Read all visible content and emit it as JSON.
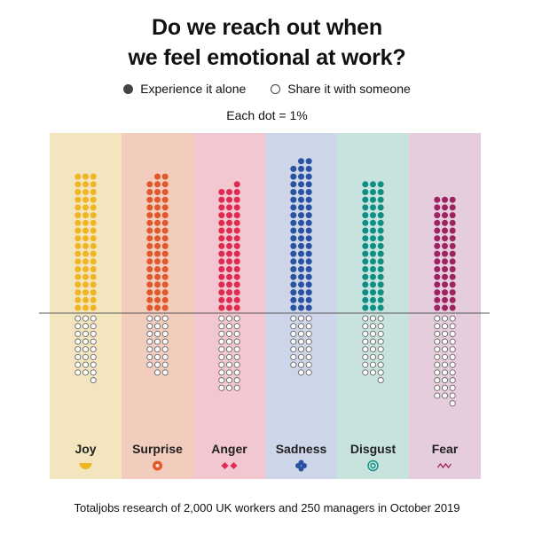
{
  "title_line1": "Do we reach out when",
  "title_line2": "we feel emotional at work?",
  "legend": {
    "alone": "Experience it alone",
    "share": "Share it with someone"
  },
  "unit_note": "Each dot = 1%",
  "footnote": "Totaljobs research of 2,000 UK workers and 250 managers in October 2019",
  "chart_data": {
    "type": "dot-matrix",
    "dots_per_percent": 1,
    "categories": [
      "Joy",
      "Surprise",
      "Anger",
      "Sadness",
      "Disgust",
      "Fear"
    ],
    "series": [
      {
        "name": "Experience it alone",
        "values": [
          54,
          53,
          49,
          59,
          51,
          45
        ]
      },
      {
        "name": "Share it with someone",
        "values": [
          25,
          23,
          30,
          23,
          25,
          34
        ]
      }
    ],
    "column_backgrounds": [
      "#f3e6bf",
      "#f2cdbd",
      "#f2c7cf",
      "#cdd5e9",
      "#c8e3de",
      "#e5cddd"
    ],
    "dot_colors": [
      "#f0b520",
      "#e2582a",
      "#e02a52",
      "#2a52a0",
      "#0e8f84",
      "#9e2461"
    ],
    "icons": [
      "half-circle-icon",
      "target-dot-icon",
      "double-diamond-icon",
      "clover-icon",
      "concentric-circle-icon",
      "zigzag-icon"
    ]
  }
}
